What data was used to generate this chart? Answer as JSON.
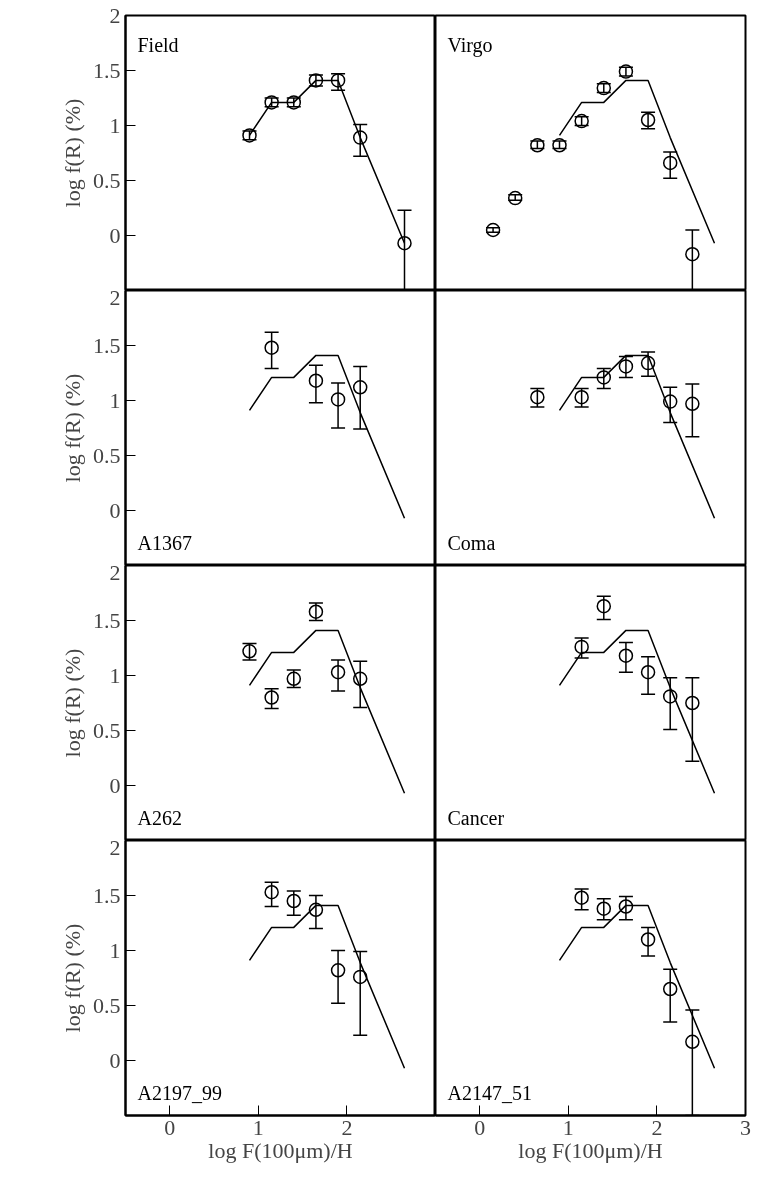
{
  "chart_data": [
    {
      "type": "scatter",
      "annotations": [
        "Field"
      ],
      "ylabel": "log f(R) (%)",
      "xlim": [
        -0.5,
        3
      ],
      "ylim": [
        -0.5,
        2
      ],
      "yticks": [
        0,
        0.5,
        1,
        1.5,
        2
      ],
      "tick_labels": "y",
      "series": [
        {
          "marker": "circle",
          "color": "#000000",
          "x": [
            0.9,
            1.15,
            1.4,
            1.65,
            1.9,
            2.15,
            2.65
          ],
          "values": [
            0.91,
            1.21,
            1.21,
            1.41,
            1.41,
            0.89,
            -0.07
          ],
          "errors": [
            [
              0.87,
              0.95
            ],
            [
              1.17,
              1.25
            ],
            [
              1.17,
              1.25
            ],
            [
              1.36,
              1.46
            ],
            [
              1.32,
              1.47
            ],
            [
              0.72,
              1.01
            ],
            [
              -0.5,
              0.23
            ]
          ]
        },
        {
          "type": "line",
          "color": "#000000",
          "x": [
            0.9,
            1.15,
            1.4,
            1.65,
            1.9,
            2.15,
            2.65
          ],
          "values": [
            0.91,
            1.21,
            1.21,
            1.41,
            1.41,
            0.89,
            -0.07
          ]
        }
      ]
    },
    {
      "type": "scatter",
      "annotations": [
        "Virgo"
      ],
      "xlim": [
        -0.5,
        3
      ],
      "ylim": [
        -0.5,
        2
      ],
      "tick_labels": false,
      "series": [
        {
          "marker": "circle",
          "color": "#000000",
          "x": [
            0.15,
            0.4,
            0.65,
            0.9,
            1.15,
            1.4,
            1.65,
            1.9,
            2.15,
            2.4
          ],
          "values": [
            0.05,
            0.34,
            0.82,
            0.82,
            1.04,
            1.34,
            1.49,
            1.05,
            0.66,
            -0.17
          ],
          "errors": [
            [
              0.03,
              0.07
            ],
            [
              0.32,
              0.37
            ],
            [
              0.79,
              0.86
            ],
            [
              0.79,
              0.86
            ],
            [
              1.0,
              1.08
            ],
            [
              1.3,
              1.38
            ],
            [
              1.45,
              1.53
            ],
            [
              0.97,
              1.12
            ],
            [
              0.52,
              0.76
            ],
            [
              -0.5,
              0.05
            ]
          ]
        },
        {
          "type": "line",
          "color": "#000000",
          "x": [
            0.9,
            1.15,
            1.4,
            1.65,
            1.9,
            2.15,
            2.65
          ],
          "values": [
            0.91,
            1.21,
            1.21,
            1.41,
            1.41,
            0.89,
            -0.07
          ]
        }
      ]
    },
    {
      "type": "scatter",
      "annotations": [
        "A1367"
      ],
      "ylabel": "log f(R) (%)",
      "xlim": [
        -0.5,
        3
      ],
      "ylim": [
        -0.5,
        2
      ],
      "yticks": [
        0,
        0.5,
        1,
        1.5,
        2
      ],
      "tick_labels": "y",
      "series": [
        {
          "marker": "circle",
          "color": "#000000",
          "x": [
            1.15,
            1.65,
            1.9,
            2.15
          ],
          "values": [
            1.48,
            1.18,
            1.01,
            1.12
          ],
          "errors": [
            [
              1.29,
              1.62
            ],
            [
              0.98,
              1.32
            ],
            [
              0.75,
              1.16
            ],
            [
              0.74,
              1.31
            ]
          ]
        },
        {
          "type": "line",
          "color": "#000000",
          "x": [
            0.9,
            1.15,
            1.4,
            1.65,
            1.9,
            2.15,
            2.65
          ],
          "values": [
            0.91,
            1.21,
            1.21,
            1.41,
            1.41,
            0.89,
            -0.07
          ]
        }
      ]
    },
    {
      "type": "scatter",
      "annotations": [
        "Coma"
      ],
      "xlim": [
        -0.5,
        3
      ],
      "ylim": [
        -0.5,
        2
      ],
      "tick_labels": false,
      "series": [
        {
          "marker": "circle",
          "color": "#000000",
          "x": [
            0.65,
            1.15,
            1.4,
            1.65,
            1.9,
            2.15,
            2.4
          ],
          "values": [
            1.03,
            1.03,
            1.21,
            1.31,
            1.34,
            0.99,
            0.97
          ],
          "errors": [
            [
              0.94,
              1.11
            ],
            [
              0.94,
              1.11
            ],
            [
              1.11,
              1.29
            ],
            [
              1.21,
              1.4
            ],
            [
              1.22,
              1.44
            ],
            [
              0.8,
              1.12
            ],
            [
              0.67,
              1.15
            ]
          ]
        },
        {
          "type": "line",
          "color": "#000000",
          "x": [
            0.9,
            1.15,
            1.4,
            1.65,
            1.9,
            2.15,
            2.65
          ],
          "values": [
            0.91,
            1.21,
            1.21,
            1.41,
            1.41,
            0.89,
            -0.07
          ]
        }
      ]
    },
    {
      "type": "scatter",
      "annotations": [
        "A262"
      ],
      "ylabel": "log f(R) (%)",
      "xlim": [
        -0.5,
        3
      ],
      "ylim": [
        -0.5,
        2
      ],
      "yticks": [
        0,
        0.5,
        1,
        1.5,
        2
      ],
      "tick_labels": "y",
      "series": [
        {
          "marker": "circle",
          "color": "#000000",
          "x": [
            0.9,
            1.15,
            1.4,
            1.65,
            1.9,
            2.15
          ],
          "values": [
            1.22,
            0.8,
            0.97,
            1.58,
            1.03,
            0.97
          ],
          "errors": [
            [
              1.14,
              1.29
            ],
            [
              0.7,
              0.88
            ],
            [
              0.89,
              1.05
            ],
            [
              1.5,
              1.66
            ],
            [
              0.86,
              1.14
            ],
            [
              0.71,
              1.13
            ]
          ]
        },
        {
          "type": "line",
          "color": "#000000",
          "x": [
            0.9,
            1.15,
            1.4,
            1.65,
            1.9,
            2.15,
            2.65
          ],
          "values": [
            0.91,
            1.21,
            1.21,
            1.41,
            1.41,
            0.89,
            -0.07
          ]
        }
      ]
    },
    {
      "type": "scatter",
      "annotations": [
        "Cancer"
      ],
      "xlim": [
        -0.5,
        3
      ],
      "ylim": [
        -0.5,
        2
      ],
      "tick_labels": false,
      "series": [
        {
          "marker": "circle",
          "color": "#000000",
          "x": [
            1.15,
            1.4,
            1.65,
            1.9,
            2.15,
            2.4
          ],
          "values": [
            1.26,
            1.63,
            1.18,
            1.03,
            0.81,
            0.75
          ],
          "errors": [
            [
              1.16,
              1.34
            ],
            [
              1.51,
              1.72
            ],
            [
              1.03,
              1.3
            ],
            [
              0.83,
              1.17
            ],
            [
              0.51,
              0.98
            ],
            [
              0.22,
              0.98
            ]
          ]
        },
        {
          "type": "line",
          "color": "#000000",
          "x": [
            0.9,
            1.15,
            1.4,
            1.65,
            1.9,
            2.15,
            2.65
          ],
          "values": [
            0.91,
            1.21,
            1.21,
            1.41,
            1.41,
            0.89,
            -0.07
          ]
        }
      ]
    },
    {
      "type": "scatter",
      "annotations": [
        "A2197_99"
      ],
      "ylabel": "log f(R) (%)",
      "xlabel": "log F(100μm)/H",
      "xlim": [
        -0.5,
        3
      ],
      "ylim": [
        -0.5,
        2
      ],
      "xticks": [
        0,
        1,
        2
      ],
      "yticks": [
        0,
        0.5,
        1,
        1.5,
        2
      ],
      "series": [
        {
          "marker": "circle",
          "color": "#000000",
          "x": [
            1.15,
            1.4,
            1.65,
            1.9,
            2.15
          ],
          "values": [
            1.53,
            1.45,
            1.37,
            0.82,
            0.76
          ],
          "errors": [
            [
              1.4,
              1.62
            ],
            [
              1.32,
              1.54
            ],
            [
              1.2,
              1.5
            ],
            [
              0.52,
              1.0
            ],
            [
              0.23,
              0.99
            ]
          ]
        },
        {
          "type": "line",
          "color": "#000000",
          "x": [
            0.9,
            1.15,
            1.4,
            1.65,
            1.9,
            2.15,
            2.65
          ],
          "values": [
            0.91,
            1.21,
            1.21,
            1.41,
            1.41,
            0.89,
            -0.07
          ]
        }
      ]
    },
    {
      "type": "scatter",
      "annotations": [
        "A2147_51"
      ],
      "xlabel": "log F(100μm)/H",
      "xlim": [
        -0.5,
        3
      ],
      "ylim": [
        -0.5,
        2
      ],
      "xticks": [
        0,
        1,
        2,
        3
      ],
      "tick_labels": "x",
      "series": [
        {
          "marker": "circle",
          "color": "#000000",
          "x": [
            1.15,
            1.4,
            1.65,
            1.9,
            2.15,
            2.4
          ],
          "values": [
            1.48,
            1.38,
            1.4,
            1.1,
            0.65,
            0.17
          ],
          "errors": [
            [
              1.37,
              1.56
            ],
            [
              1.28,
              1.47
            ],
            [
              1.28,
              1.49
            ],
            [
              0.95,
              1.21
            ],
            [
              0.35,
              0.83
            ],
            [
              -0.5,
              0.46
            ]
          ]
        },
        {
          "type": "line",
          "color": "#000000",
          "x": [
            0.9,
            1.15,
            1.4,
            1.65,
            1.9,
            2.15,
            2.65
          ],
          "values": [
            0.91,
            1.21,
            1.21,
            1.41,
            1.41,
            0.89,
            -0.07
          ]
        }
      ]
    }
  ]
}
